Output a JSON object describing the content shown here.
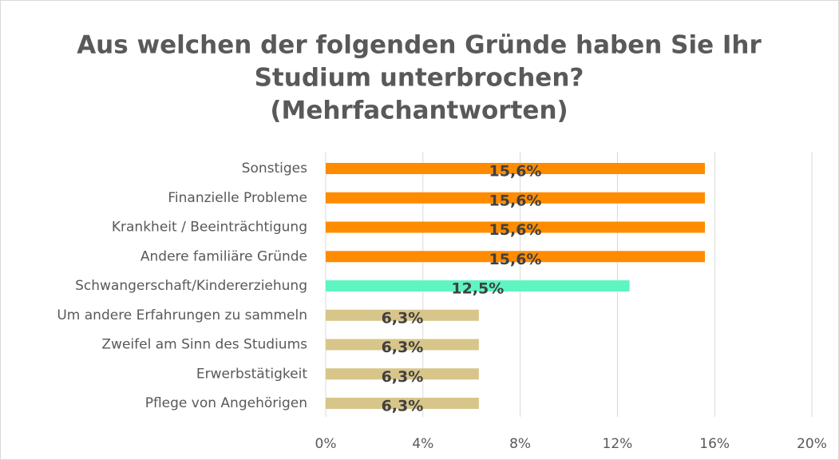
{
  "chart_data": {
    "type": "bar",
    "orientation": "horizontal",
    "title": [
      "Aus welchen der folgenden Gründe haben Sie Ihr",
      "Studium unterbrochen?",
      "(Mehrfachantworten)"
    ],
    "categories": [
      "Sonstiges",
      "Finanzielle Probleme",
      "Krankheit / Beeinträchtigung",
      "Andere familiäre Gründe",
      "Schwangerschaft/Kindererziehung",
      "Um andere Erfahrungen zu sammeln",
      "Zweifel am Sinn des Studiums",
      "Erwerbstätigkeit",
      "Pflege von Angehörigen"
    ],
    "values": [
      15.6,
      15.6,
      15.6,
      15.6,
      12.5,
      6.3,
      6.3,
      6.3,
      6.3
    ],
    "value_labels": [
      "15,6%",
      "15,6%",
      "15,6%",
      "15,6%",
      "12,5%",
      "6,3%",
      "6,3%",
      "6,3%",
      "6,3%"
    ],
    "colors": [
      "#ff8c00",
      "#ff8c00",
      "#ff8c00",
      "#ff8c00",
      "#5ef5c0",
      "#d8c58a",
      "#d8c58a",
      "#d8c58a",
      "#d8c58a"
    ],
    "xlim": [
      0,
      20
    ],
    "xticks": [
      {
        "value": 0,
        "label": "0%"
      },
      {
        "value": 4,
        "label": "4%"
      },
      {
        "value": 8,
        "label": "8%"
      },
      {
        "value": 12,
        "label": "12%"
      },
      {
        "value": 16,
        "label": "16%"
      },
      {
        "value": 20,
        "label": "20%"
      }
    ],
    "grid": true
  }
}
